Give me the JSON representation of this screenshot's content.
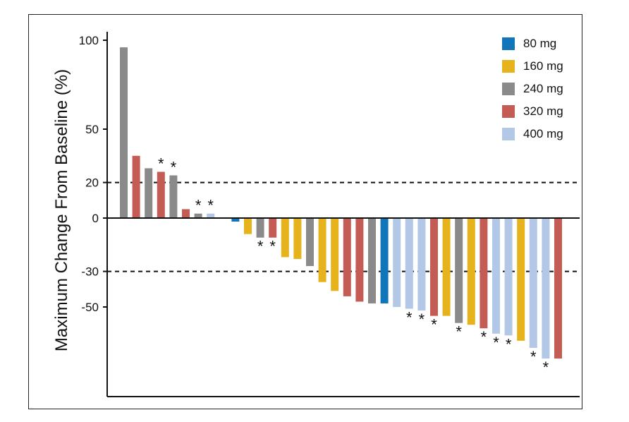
{
  "chart_data": {
    "type": "bar",
    "title": "",
    "xlabel": "",
    "ylabel": "Maximum Change From Baseline (%)",
    "ylim": [
      -100,
      100
    ],
    "yticks": [
      100,
      50,
      20,
      0,
      -30,
      -50
    ],
    "reference_lines": [
      20,
      -30
    ],
    "legend_position": "top-right",
    "series": [
      {
        "name": "80 mg",
        "color": "#1176b9"
      },
      {
        "name": "160 mg",
        "color": "#e7b31c"
      },
      {
        "name": "240 mg",
        "color": "#8a8a8a"
      },
      {
        "name": "320 mg",
        "color": "#c45c55"
      },
      {
        "name": "400 mg",
        "color": "#b3c7e6"
      }
    ],
    "bars": [
      {
        "dose": "240 mg",
        "value": 96,
        "star": false
      },
      {
        "dose": "320 mg",
        "value": 35,
        "star": false
      },
      {
        "dose": "240 mg",
        "value": 28,
        "star": false
      },
      {
        "dose": "320 mg",
        "value": 26,
        "star": true
      },
      {
        "dose": "240 mg",
        "value": 24,
        "star": true
      },
      {
        "dose": "320 mg",
        "value": 5,
        "star": false
      },
      {
        "dose": "240 mg",
        "value": 2.5,
        "star": true
      },
      {
        "dose": "400 mg",
        "value": 2.5,
        "star": true
      },
      {
        "dose": "400 mg",
        "value": 0,
        "star": false
      },
      {
        "dose": "80 mg",
        "value": -2,
        "star": false
      },
      {
        "dose": "160 mg",
        "value": -9,
        "star": false
      },
      {
        "dose": "240 mg",
        "value": -11,
        "star": true
      },
      {
        "dose": "320 mg",
        "value": -11,
        "star": true
      },
      {
        "dose": "160 mg",
        "value": -22,
        "star": false
      },
      {
        "dose": "160 mg",
        "value": -23,
        "star": false
      },
      {
        "dose": "240 mg",
        "value": -27,
        "star": false
      },
      {
        "dose": "160 mg",
        "value": -36,
        "star": false
      },
      {
        "dose": "160 mg",
        "value": -41,
        "star": false
      },
      {
        "dose": "320 mg",
        "value": -44,
        "star": false
      },
      {
        "dose": "320 mg",
        "value": -47,
        "star": false
      },
      {
        "dose": "240 mg",
        "value": -48,
        "star": false
      },
      {
        "dose": "80 mg",
        "value": -48,
        "star": false
      },
      {
        "dose": "400 mg",
        "value": -50,
        "star": false
      },
      {
        "dose": "400 mg",
        "value": -51,
        "star": true
      },
      {
        "dose": "400 mg",
        "value": -52,
        "star": true
      },
      {
        "dose": "320 mg",
        "value": -55,
        "star": true
      },
      {
        "dose": "160 mg",
        "value": -55,
        "star": false
      },
      {
        "dose": "240 mg",
        "value": -59,
        "star": true
      },
      {
        "dose": "160 mg",
        "value": -60,
        "star": false
      },
      {
        "dose": "320 mg",
        "value": -62,
        "star": true
      },
      {
        "dose": "400 mg",
        "value": -65,
        "star": true
      },
      {
        "dose": "400 mg",
        "value": -66,
        "star": true
      },
      {
        "dose": "160 mg",
        "value": -69,
        "star": false
      },
      {
        "dose": "400 mg",
        "value": -73,
        "star": true
      },
      {
        "dose": "400 mg",
        "value": -79,
        "star": true
      },
      {
        "dose": "320 mg",
        "value": -79,
        "star": false
      }
    ],
    "star_symbol": "*"
  }
}
